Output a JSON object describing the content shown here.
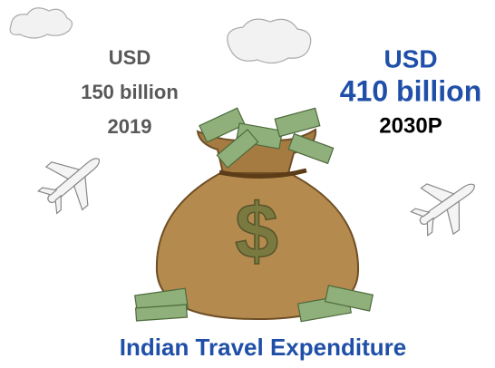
{
  "left": {
    "currency": "USD",
    "amount": "150 billion",
    "year": "2019"
  },
  "right": {
    "currency": "USD",
    "amount": "410 billion",
    "year": "2030P"
  },
  "bag": {
    "symbol": "$"
  },
  "title": "Indian Travel Expenditure"
}
